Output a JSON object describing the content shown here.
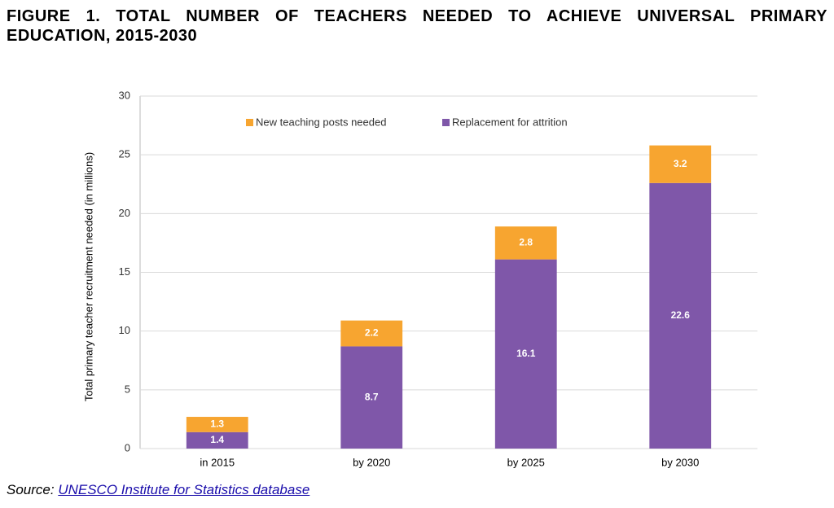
{
  "chart_data": {
    "type": "stacked_bar",
    "title": "FIGURE 1. TOTAL NUMBER OF TEACHERS NEEDED TO ACHIEVE UNIVERSAL PRIMARY EDUCATION, 2015-2030",
    "y_label": "Total primary teacher recruitment needed (in millions)",
    "categories": [
      "in 2015",
      "by 2020",
      "by 2025",
      "by 2030"
    ],
    "series": [
      {
        "name": "Replacement for attrition",
        "color": "#7f57a9",
        "values": [
          1.4,
          8.7,
          16.1,
          22.6
        ]
      },
      {
        "name": "New teaching posts needed",
        "color": "#f7a530",
        "values": [
          1.3,
          2.2,
          2.8,
          3.2
        ]
      }
    ],
    "ylim": [
      0,
      30
    ],
    "yticks": [
      0,
      5,
      10,
      15,
      20,
      25,
      30
    ],
    "grid": true,
    "legend": "top",
    "source_label": "Source:",
    "source_link": "UNESCO Institute for Statistics database"
  }
}
